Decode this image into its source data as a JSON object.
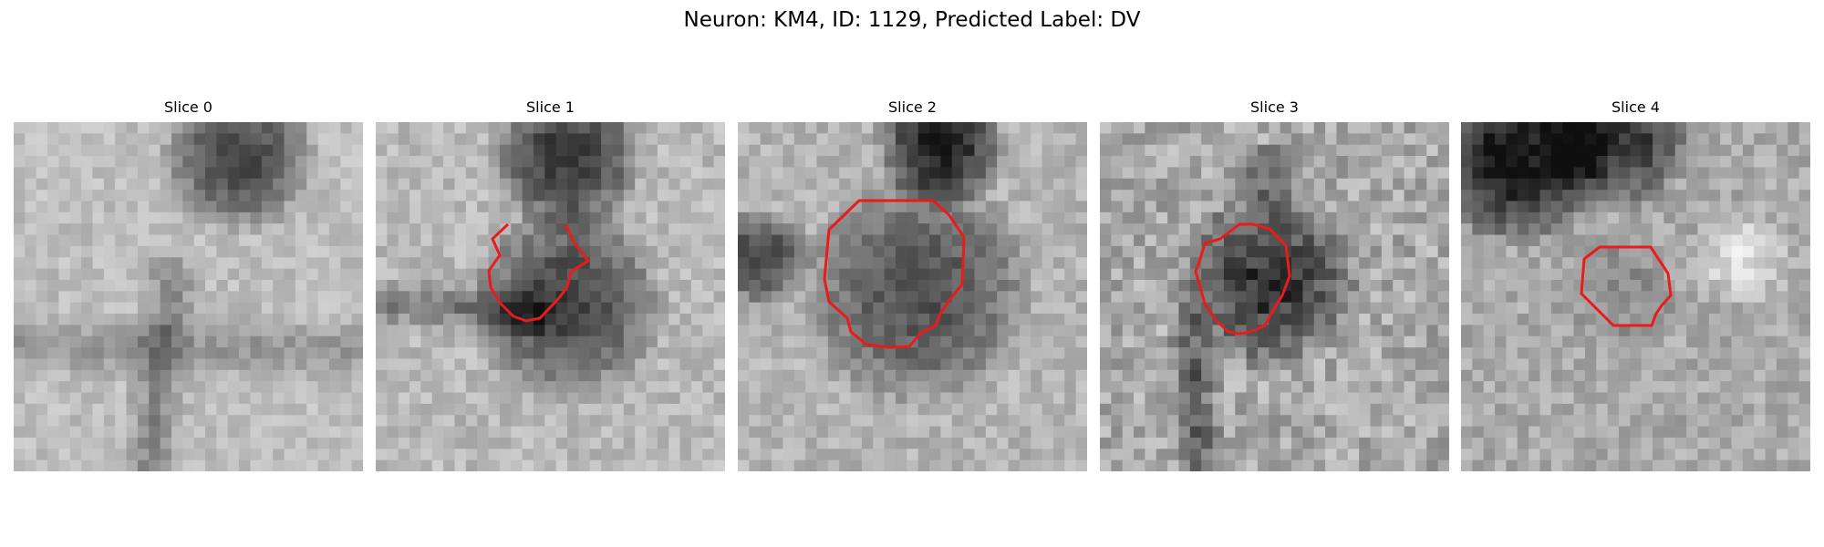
{
  "figure": {
    "title": "Neuron: KM4, ID: 1129, Predicted Label: DV"
  },
  "slices": [
    {
      "label": "Slice 0",
      "has_contour": false
    },
    {
      "label": "Slice 1",
      "has_contour": true
    },
    {
      "label": "Slice 2",
      "has_contour": true
    },
    {
      "label": "Slice 3",
      "has_contour": true
    },
    {
      "label": "Slice 4",
      "has_contour": true
    }
  ],
  "colors": {
    "contour": "#e81c1c",
    "background": "#ffffff"
  },
  "image_style": "grayscale pixelated microscopy tile, 31x31 pixels"
}
